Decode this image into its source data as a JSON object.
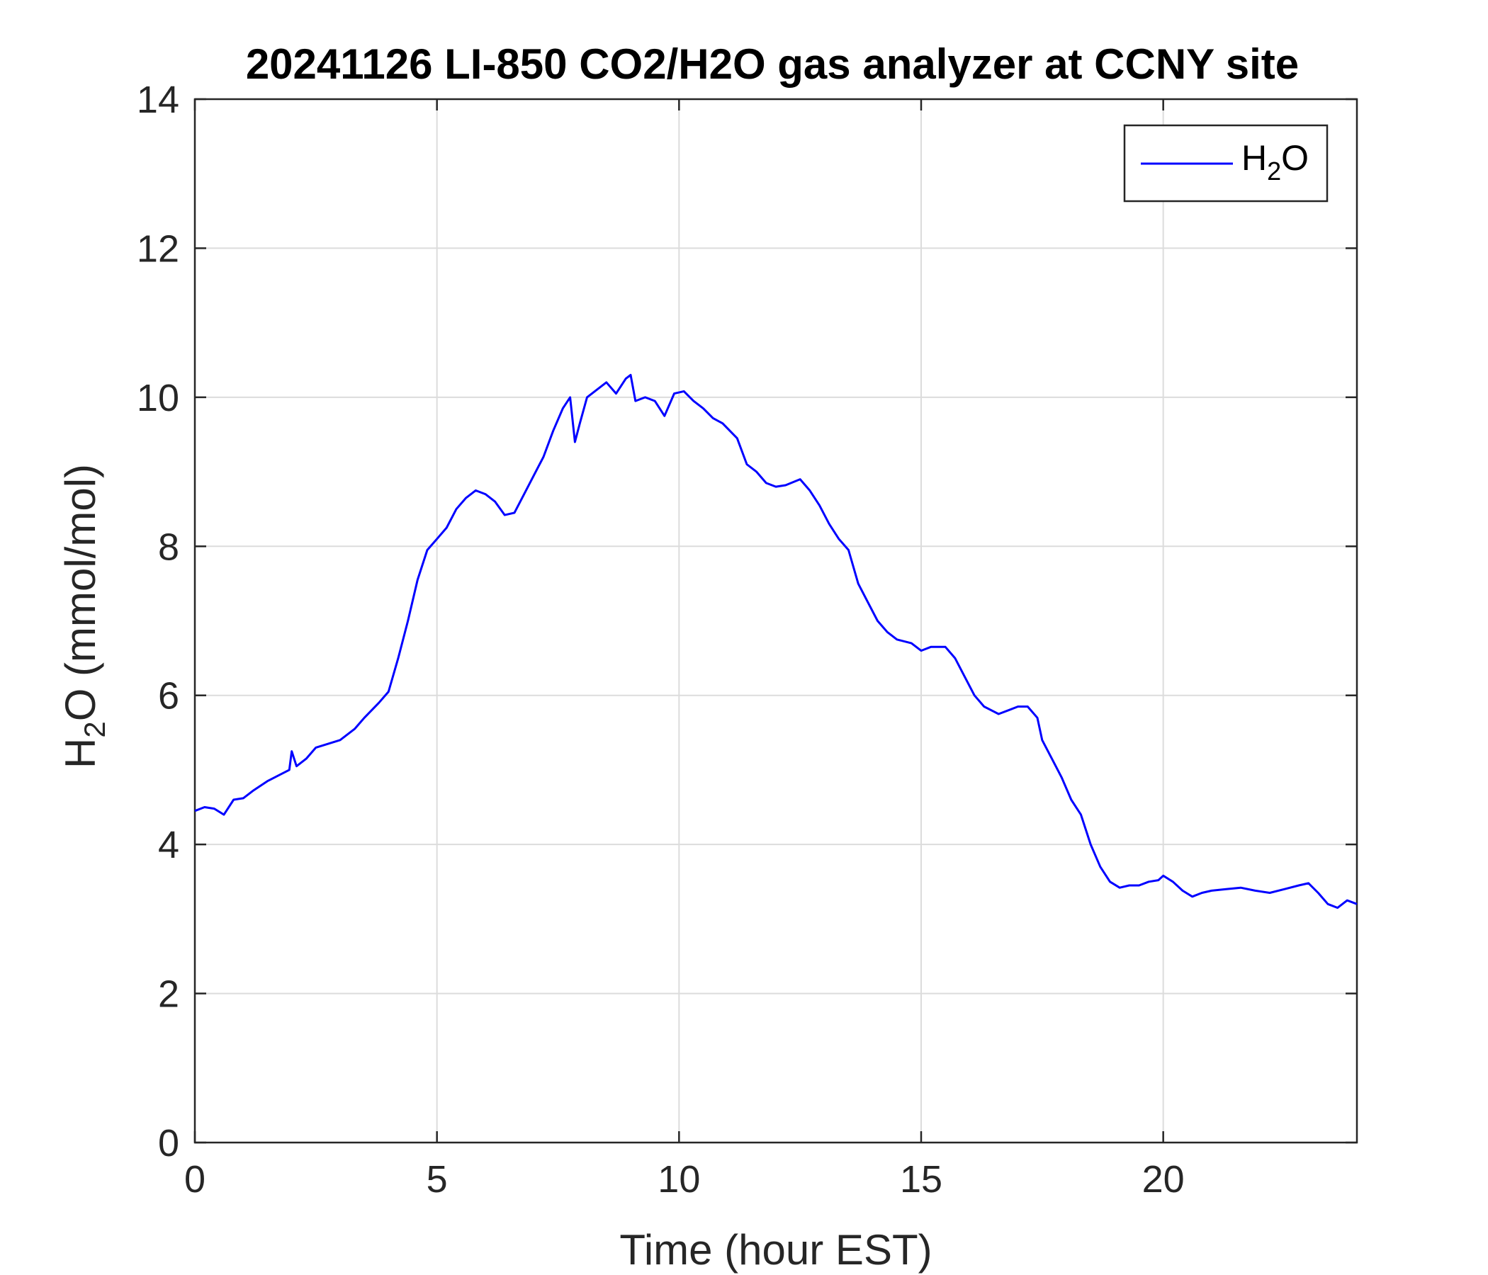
{
  "chart_data": {
    "type": "line",
    "title": "20241126 LI-850 CO2/H2O gas analyzer at CCNY site",
    "xlabel": "Time (hour EST)",
    "ylabel": {
      "pre": "H",
      "sub": "2",
      "post": "O (mmol/mol)"
    },
    "xlim": [
      0,
      24
    ],
    "ylim": [
      0,
      14
    ],
    "xticks": [
      0,
      5,
      10,
      15,
      20
    ],
    "yticks": [
      0,
      2,
      4,
      6,
      8,
      10,
      12,
      14
    ],
    "grid": true,
    "legend_position": "top-right",
    "series": [
      {
        "legend": {
          "pre": "H",
          "sub": "2",
          "post": "O"
        },
        "color": "#0000ff",
        "x": [
          0,
          0.2,
          0.4,
          0.6,
          0.8,
          1.0,
          1.2,
          1.5,
          1.8,
          1.95,
          2.0,
          2.1,
          2.3,
          2.5,
          3.0,
          3.3,
          3.5,
          3.8,
          4.0,
          4.2,
          4.4,
          4.6,
          4.8,
          5.0,
          5.2,
          5.4,
          5.6,
          5.8,
          6.0,
          6.2,
          6.4,
          6.6,
          6.8,
          7.0,
          7.2,
          7.4,
          7.6,
          7.75,
          7.85,
          7.95,
          8.1,
          8.3,
          8.5,
          8.7,
          8.9,
          9.0,
          9.1,
          9.3,
          9.5,
          9.7,
          9.9,
          10.1,
          10.3,
          10.5,
          10.7,
          10.9,
          11.2,
          11.4,
          11.6,
          11.8,
          12.0,
          12.2,
          12.5,
          12.7,
          12.9,
          13.1,
          13.3,
          13.5,
          13.7,
          13.9,
          14.1,
          14.3,
          14.5,
          14.8,
          15.0,
          15.2,
          15.5,
          15.7,
          15.9,
          16.1,
          16.3,
          16.6,
          16.8,
          17.0,
          17.2,
          17.4,
          17.5,
          17.7,
          17.9,
          18.1,
          18.3,
          18.5,
          18.7,
          18.9,
          19.1,
          19.3,
          19.5,
          19.7,
          19.9,
          20.0,
          20.2,
          20.4,
          20.6,
          20.8,
          21.0,
          21.3,
          21.6,
          21.9,
          22.2,
          22.5,
          22.8,
          23.0,
          23.2,
          23.4,
          23.6,
          23.8,
          24.0
        ],
        "y": [
          4.45,
          4.5,
          4.48,
          4.4,
          4.6,
          4.62,
          4.72,
          4.85,
          4.95,
          5.0,
          5.25,
          5.05,
          5.15,
          5.3,
          5.4,
          5.55,
          5.7,
          5.9,
          6.05,
          6.5,
          7.0,
          7.55,
          7.95,
          8.1,
          8.25,
          8.5,
          8.65,
          8.75,
          8.7,
          8.6,
          8.42,
          8.45,
          8.7,
          8.95,
          9.2,
          9.55,
          9.85,
          10.0,
          9.4,
          9.65,
          10.0,
          10.1,
          10.2,
          10.05,
          10.25,
          10.3,
          9.95,
          10.0,
          9.95,
          9.75,
          10.05,
          10.08,
          9.95,
          9.85,
          9.72,
          9.65,
          9.45,
          9.1,
          9.0,
          8.85,
          8.8,
          8.82,
          8.9,
          8.75,
          8.55,
          8.3,
          8.1,
          7.95,
          7.5,
          7.25,
          7.0,
          6.85,
          6.75,
          6.7,
          6.6,
          6.65,
          6.65,
          6.5,
          6.25,
          6.0,
          5.85,
          5.75,
          5.8,
          5.85,
          5.85,
          5.7,
          5.4,
          5.15,
          4.9,
          4.6,
          4.4,
          4.0,
          3.7,
          3.5,
          3.42,
          3.45,
          3.45,
          3.5,
          3.52,
          3.58,
          3.5,
          3.38,
          3.3,
          3.35,
          3.38,
          3.4,
          3.42,
          3.38,
          3.35,
          3.4,
          3.45,
          3.48,
          3.35,
          3.2,
          3.15,
          3.25,
          3.2
        ]
      }
    ]
  }
}
